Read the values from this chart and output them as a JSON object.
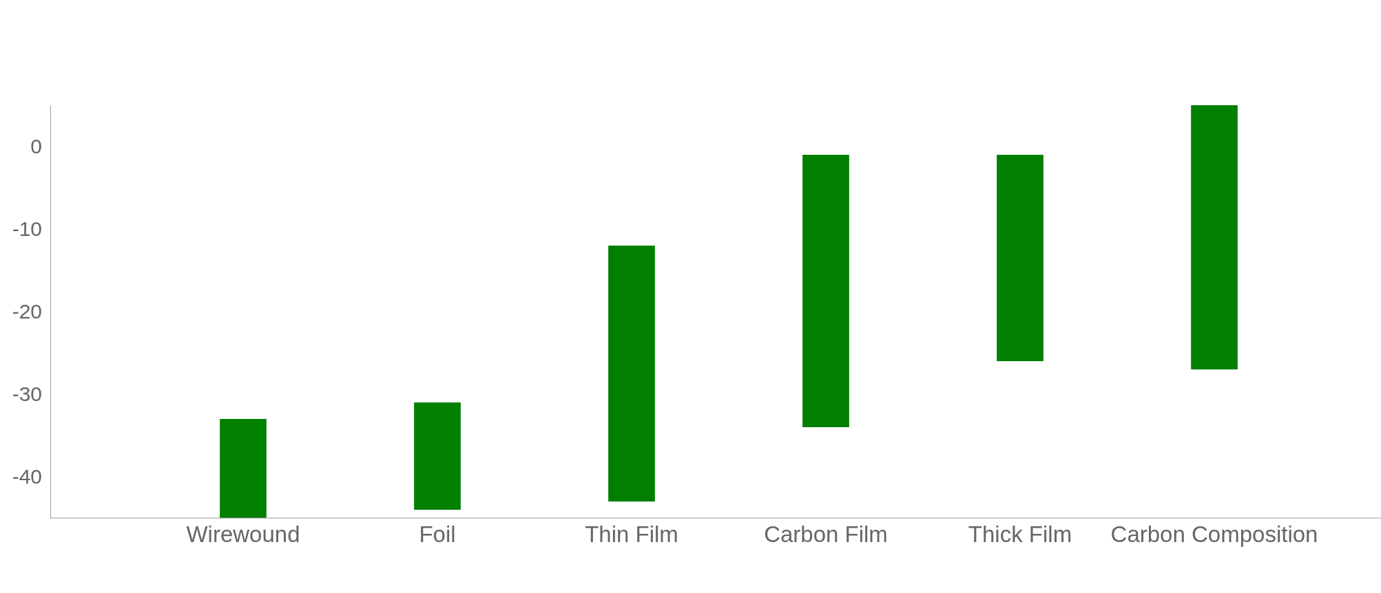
{
  "chart_data": {
    "type": "bar",
    "categories": [
      "Wirewound",
      "Foil",
      "Thin Film",
      "Carbon Film",
      "Thick Film",
      "Carbon Composition"
    ],
    "base": [
      -45,
      -44,
      -43,
      -34,
      -26,
      -27
    ],
    "values": [
      12,
      13,
      31,
      33,
      25,
      32
    ],
    "color": "#007f00",
    "ylim": [
      -45,
      5
    ],
    "yticks": [
      0,
      -10,
      -20,
      -30,
      -40
    ],
    "grid": false
  }
}
